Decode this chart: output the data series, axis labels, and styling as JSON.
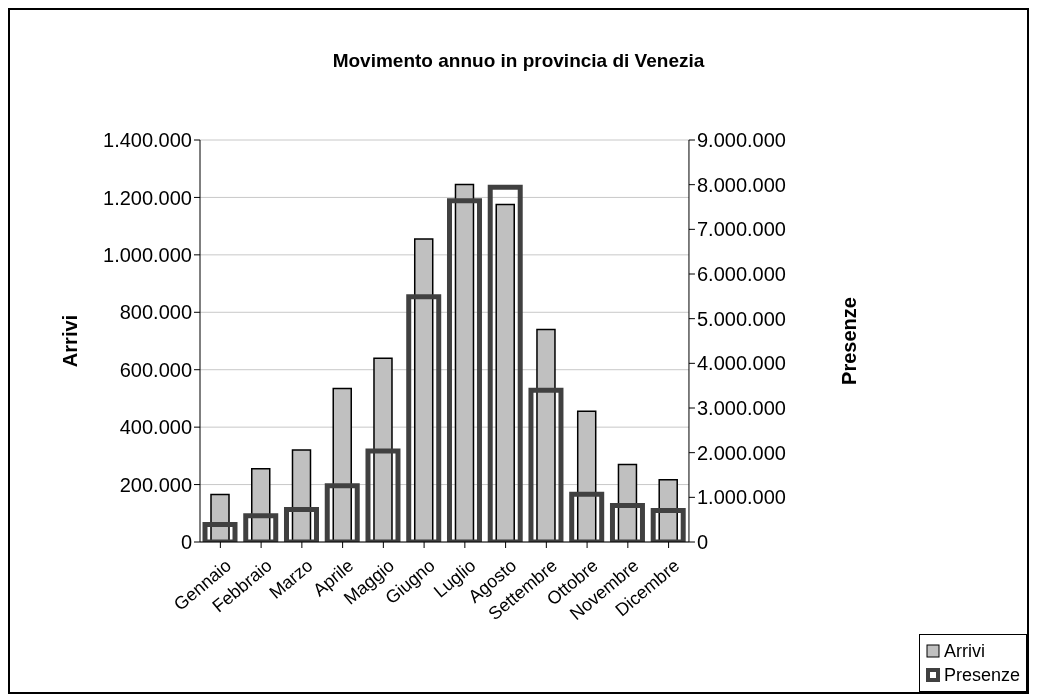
{
  "chart_data": {
    "type": "bar",
    "title": "Movimento annuo in provincia di Venezia",
    "ylabel": "Arrivi",
    "y2label": "Presenze",
    "categories": [
      "Gennaio",
      "Febbraio",
      "Marzo",
      "Aprile",
      "Maggio",
      "Giugno",
      "Luglio",
      "Agosto",
      "Settembre",
      "Ottobre",
      "Novembre",
      "Dicembre"
    ],
    "series": [
      {
        "name": "Arrivi",
        "color": "#c0c0c0",
        "values": [
          165000,
          255000,
          320000,
          535000,
          640000,
          1055000,
          1245000,
          1175000,
          740000,
          455000,
          270000,
          217000
        ]
      },
      {
        "name": "Presenze",
        "color": "#404040",
        "axis": "y2",
        "values": [
          390000,
          590000,
          730000,
          1260000,
          2040000,
          5490000,
          7640000,
          7940000,
          3400000,
          1070000,
          815000,
          705000
        ]
      }
    ],
    "ylim": [
      0,
      1400000
    ],
    "yticks": [
      {
        "value": 0,
        "label": "0"
      },
      {
        "value": 200000,
        "label": "200.000"
      },
      {
        "value": 400000,
        "label": "400.000"
      },
      {
        "value": 600000,
        "label": "600.000"
      },
      {
        "value": 800000,
        "label": "800.000"
      },
      {
        "value": 1000000,
        "label": "1.000.000"
      },
      {
        "value": 1200000,
        "label": "1.200.000"
      },
      {
        "value": 1400000,
        "label": "1.400.000"
      }
    ],
    "y2lim": [
      0,
      9000000
    ],
    "y2ticks": [
      {
        "value": 0,
        "label": "0"
      },
      {
        "value": 1000000,
        "label": "1.000.000"
      },
      {
        "value": 2000000,
        "label": "2.000.000"
      },
      {
        "value": 3000000,
        "label": "3.000.000"
      },
      {
        "value": 4000000,
        "label": "4.000.000"
      },
      {
        "value": 5000000,
        "label": "5.000.000"
      },
      {
        "value": 6000000,
        "label": "6.000.000"
      },
      {
        "value": 7000000,
        "label": "7.000.000"
      },
      {
        "value": 8000000,
        "label": "8.000.000"
      },
      {
        "value": 9000000,
        "label": "9.000.000"
      }
    ],
    "grid": "y",
    "legend": "bottom right"
  }
}
